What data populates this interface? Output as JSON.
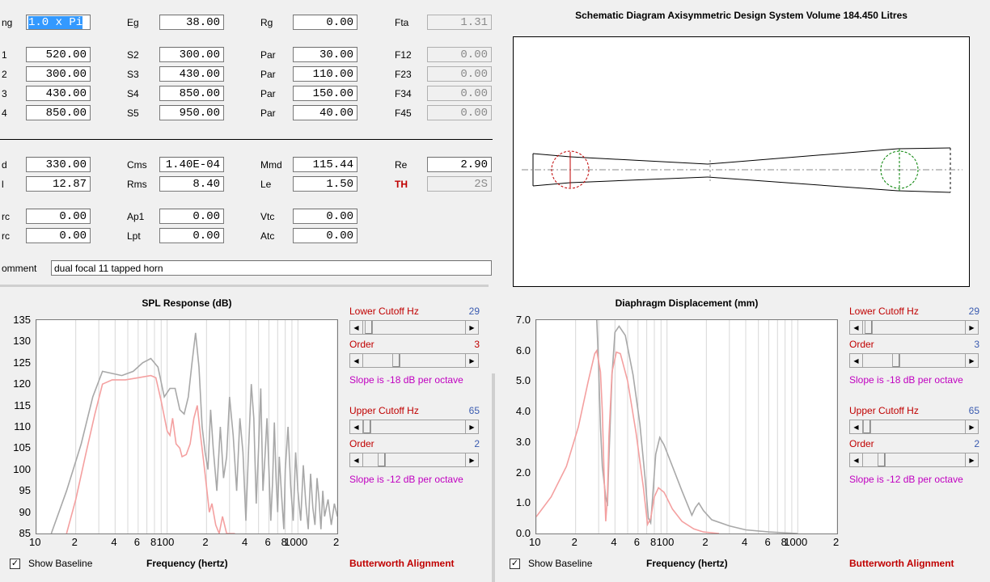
{
  "params": {
    "row0": {
      "l1": "ng",
      "v1": "1.0 x Pi",
      "l2": "Eg",
      "v2": "38.00",
      "l3": "Rg",
      "v3": "0.00",
      "l4": "Fta",
      "v4": "1.31"
    },
    "row1": {
      "l1": "1",
      "v1": "520.00",
      "l2": "S2",
      "v2": "300.00",
      "l3": "Par",
      "v3": "30.00",
      "l4": "F12",
      "v4": "0.00"
    },
    "row2": {
      "l1": "2",
      "v1": "300.00",
      "l2": "S3",
      "v2": "430.00",
      "l3": "Par",
      "v3": "110.00",
      "l4": "F23",
      "v4": "0.00"
    },
    "row3": {
      "l1": "3",
      "v1": "430.00",
      "l2": "S4",
      "v2": "850.00",
      "l3": "Par",
      "v3": "150.00",
      "l4": "F34",
      "v4": "0.00"
    },
    "row4": {
      "l1": "4",
      "v1": "850.00",
      "l2": "S5",
      "v2": "950.00",
      "l3": "Par",
      "v3": "40.00",
      "l4": "F45",
      "v4": "0.00"
    },
    "row5": {
      "l1": "d",
      "v1": "330.00",
      "l2": "Cms",
      "v2": "1.40E-04",
      "l3": "Mmd",
      "v3": "115.44",
      "l4": "Re",
      "v4": "2.90"
    },
    "row6": {
      "l1": "l",
      "v1": "12.87",
      "l2": "Rms",
      "v2": "8.40",
      "l3": "Le",
      "v3": "1.50",
      "l4": "TH",
      "v4": "2S"
    },
    "row7": {
      "l1": "rc",
      "v1": "0.00",
      "l2": "Ap1",
      "v2": "0.00",
      "l3": "Vtc",
      "v3": "0.00"
    },
    "row8": {
      "l1": "rc",
      "v1": "0.00",
      "l2": "Lpt",
      "v2": "0.00",
      "l3": "Atc",
      "v3": "0.00"
    },
    "comment_label": "omment",
    "comment_value": "dual focal 11 tapped horn"
  },
  "schematic": {
    "title": "Schematic Diagram   Axisymmetric Design   System Volume 184.450 Litres"
  },
  "spl": {
    "title": "SPL Response (dB)",
    "y_ticks": [
      "135",
      "130",
      "125",
      "120",
      "115",
      "110",
      "105",
      "100",
      "95",
      "90",
      "85"
    ],
    "x_ticks": [
      "10",
      "2",
      "4",
      "6",
      "8",
      "100",
      "2",
      "4",
      "6",
      "8",
      "1000",
      "2"
    ],
    "xlabel": "Frequency (hertz)",
    "show_baseline": "Show Baseline",
    "alignment": "Butterworth Alignment",
    "controls": {
      "lower_cutoff_label": "Lower Cutoff  Hz",
      "lower_cutoff_value": "29",
      "lower_order_label": "Order",
      "lower_order_value": "3",
      "lower_slope": "Slope is -18 dB per octave",
      "upper_cutoff_label": "Upper Cutoff  Hz",
      "upper_cutoff_value": "65",
      "upper_order_label": "Order",
      "upper_order_value": "2",
      "upper_slope": "Slope is -12 dB per octave"
    }
  },
  "disp": {
    "title": "Diaphragm Displacement (mm)",
    "y_ticks": [
      "7.0",
      "6.0",
      "5.0",
      "4.0",
      "3.0",
      "2.0",
      "1.0",
      "0.0"
    ],
    "x_ticks": [
      "10",
      "2",
      "4",
      "6",
      "8",
      "100",
      "2",
      "4",
      "6",
      "8",
      "1000",
      "2"
    ],
    "xlabel": "Frequency (hertz)",
    "show_baseline": "Show Baseline",
    "alignment": "Butterworth Alignment",
    "controls": {
      "lower_cutoff_label": "Lower Cutoff  Hz",
      "lower_cutoff_value": "29",
      "lower_order_label": "Order",
      "lower_order_value": "3",
      "lower_slope": "Slope is -18 dB per octave",
      "upper_cutoff_label": "Upper Cutoff  Hz",
      "upper_cutoff_value": "65",
      "upper_order_label": "Order",
      "upper_order_value": "2",
      "upper_slope": "Slope is -12 dB per octave"
    }
  },
  "chart_data": [
    {
      "type": "line",
      "title": "SPL Response (dB)",
      "xlabel": "Frequency (hertz)",
      "ylabel": "",
      "x_scale": "log",
      "xlim": [
        10,
        2000
      ],
      "ylim": [
        85,
        135
      ],
      "series": [
        {
          "color": "#a8a8a8",
          "points": [
            [
              13,
              85
            ],
            [
              17,
              95
            ],
            [
              22,
              106
            ],
            [
              27,
              117
            ],
            [
              32,
              123
            ],
            [
              38,
              122.5
            ],
            [
              45,
              122
            ],
            [
              55,
              123
            ],
            [
              65,
              125
            ],
            [
              75,
              126
            ],
            [
              85,
              124
            ],
            [
              95,
              117
            ],
            [
              105,
              119
            ],
            [
              115,
              119
            ],
            [
              125,
              114
            ],
            [
              135,
              113
            ],
            [
              145,
              117
            ],
            [
              155,
              125
            ],
            [
              165,
              132
            ],
            [
              175,
              124
            ],
            [
              185,
              110
            ],
            [
              195,
              104
            ],
            [
              205,
              100
            ],
            [
              215,
              114
            ],
            [
              225,
              105
            ],
            [
              240,
              95
            ],
            [
              255,
              110
            ],
            [
              270,
              98
            ],
            [
              285,
              103
            ],
            [
              300,
              117
            ],
            [
              320,
              108
            ],
            [
              340,
              95
            ],
            [
              360,
              112
            ],
            [
              380,
              104
            ],
            [
              400,
              88
            ],
            [
              420,
              105
            ],
            [
              440,
              120
            ],
            [
              460,
              112
            ],
            [
              480,
              92
            ],
            [
              500,
              105
            ],
            [
              520,
              119
            ],
            [
              540,
              95
            ],
            [
              560,
              103
            ],
            [
              580,
              112
            ],
            [
              600,
              100
            ],
            [
              620,
              88
            ],
            [
              640,
              97
            ],
            [
              660,
              111
            ],
            [
              680,
              98
            ],
            [
              700,
              90
            ],
            [
              720,
              103
            ],
            [
              750,
              94
            ],
            [
              780,
              86
            ],
            [
              800,
              100
            ],
            [
              840,
              110
            ],
            [
              880,
              96
            ],
            [
              920,
              88
            ],
            [
              960,
              104
            ],
            [
              1000,
              95
            ],
            [
              1050,
              88
            ],
            [
              1100,
              101
            ],
            [
              1150,
              92
            ],
            [
              1200,
              86
            ],
            [
              1250,
              99
            ],
            [
              1300,
              91
            ],
            [
              1350,
              87
            ],
            [
              1400,
              98
            ],
            [
              1450,
              93
            ],
            [
              1500,
              86
            ],
            [
              1550,
              95
            ],
            [
              1600,
              89
            ],
            [
              1700,
              93
            ],
            [
              1800,
              87
            ],
            [
              1900,
              92
            ],
            [
              2000,
              89
            ]
          ]
        },
        {
          "color": "#f4a0a0",
          "points": [
            [
              17,
              85
            ],
            [
              20,
              93
            ],
            [
              24,
              104
            ],
            [
              28,
              113
            ],
            [
              32,
              120
            ],
            [
              38,
              121
            ],
            [
              48,
              121
            ],
            [
              60,
              121.5
            ],
            [
              75,
              122
            ],
            [
              82,
              121.5
            ],
            [
              90,
              116
            ],
            [
              100,
              109
            ],
            [
              105,
              108
            ],
            [
              110,
              112
            ],
            [
              117,
              106
            ],
            [
              125,
              105
            ],
            [
              130,
              103
            ],
            [
              140,
              103.5
            ],
            [
              150,
              106
            ],
            [
              160,
              112
            ],
            [
              170,
              115
            ],
            [
              180,
              108
            ],
            [
              190,
              102
            ],
            [
              200,
              96
            ],
            [
              210,
              90
            ],
            [
              220,
              92
            ],
            [
              235,
              87
            ],
            [
              250,
              85
            ],
            [
              265,
              89
            ],
            [
              285,
              85
            ],
            [
              300,
              85
            ],
            [
              330,
              85
            ]
          ]
        }
      ]
    },
    {
      "type": "line",
      "title": "Diaphragm Displacement (mm)",
      "xlabel": "Frequency (hertz)",
      "ylabel": "",
      "x_scale": "log",
      "xlim": [
        10,
        2000
      ],
      "ylim": [
        0,
        7
      ],
      "series": [
        {
          "color": "#a8a8a8",
          "points": [
            [
              29,
              7.0
            ],
            [
              30,
              5.5
            ],
            [
              31,
              3.5
            ],
            [
              32,
              2.2
            ],
            [
              34,
              1.2
            ],
            [
              35,
              0.9
            ],
            [
              36,
              2.5
            ],
            [
              38,
              5.2
            ],
            [
              40,
              6.6
            ],
            [
              43,
              6.8
            ],
            [
              48,
              6.5
            ],
            [
              55,
              5.2
            ],
            [
              62,
              3.6
            ],
            [
              68,
              1.8
            ],
            [
              72,
              0.5
            ],
            [
              75,
              0.35
            ],
            [
              78,
              1.3
            ],
            [
              82,
              2.6
            ],
            [
              88,
              3.15
            ],
            [
              95,
              2.9
            ],
            [
              110,
              2.2
            ],
            [
              130,
              1.4
            ],
            [
              155,
              0.6
            ],
            [
              165,
              0.85
            ],
            [
              175,
              1.0
            ],
            [
              190,
              0.75
            ],
            [
              220,
              0.45
            ],
            [
              300,
              0.25
            ],
            [
              400,
              0.12
            ],
            [
              600,
              0.05
            ],
            [
              800,
              0.02
            ],
            [
              1000,
              0.0
            ]
          ]
        },
        {
          "color": "#f4a0a0",
          "points": [
            [
              10,
              0.55
            ],
            [
              13,
              1.2
            ],
            [
              17,
              2.2
            ],
            [
              21,
              3.5
            ],
            [
              25,
              5.0
            ],
            [
              28,
              5.9
            ],
            [
              29,
              6.0
            ],
            [
              31,
              5.3
            ],
            [
              32,
              4.0
            ],
            [
              33,
              2.0
            ],
            [
              34,
              0.4
            ],
            [
              35,
              1.2
            ],
            [
              36,
              3.2
            ],
            [
              38,
              5.3
            ],
            [
              41,
              5.95
            ],
            [
              44,
              5.9
            ],
            [
              50,
              5.0
            ],
            [
              58,
              3.3
            ],
            [
              66,
              1.5
            ],
            [
              71,
              0.3
            ],
            [
              75,
              0.5
            ],
            [
              80,
              1.2
            ],
            [
              86,
              1.5
            ],
            [
              95,
              1.35
            ],
            [
              110,
              0.8
            ],
            [
              130,
              0.4
            ],
            [
              160,
              0.15
            ],
            [
              190,
              0.05
            ],
            [
              250,
              0.0
            ]
          ]
        }
      ]
    }
  ]
}
